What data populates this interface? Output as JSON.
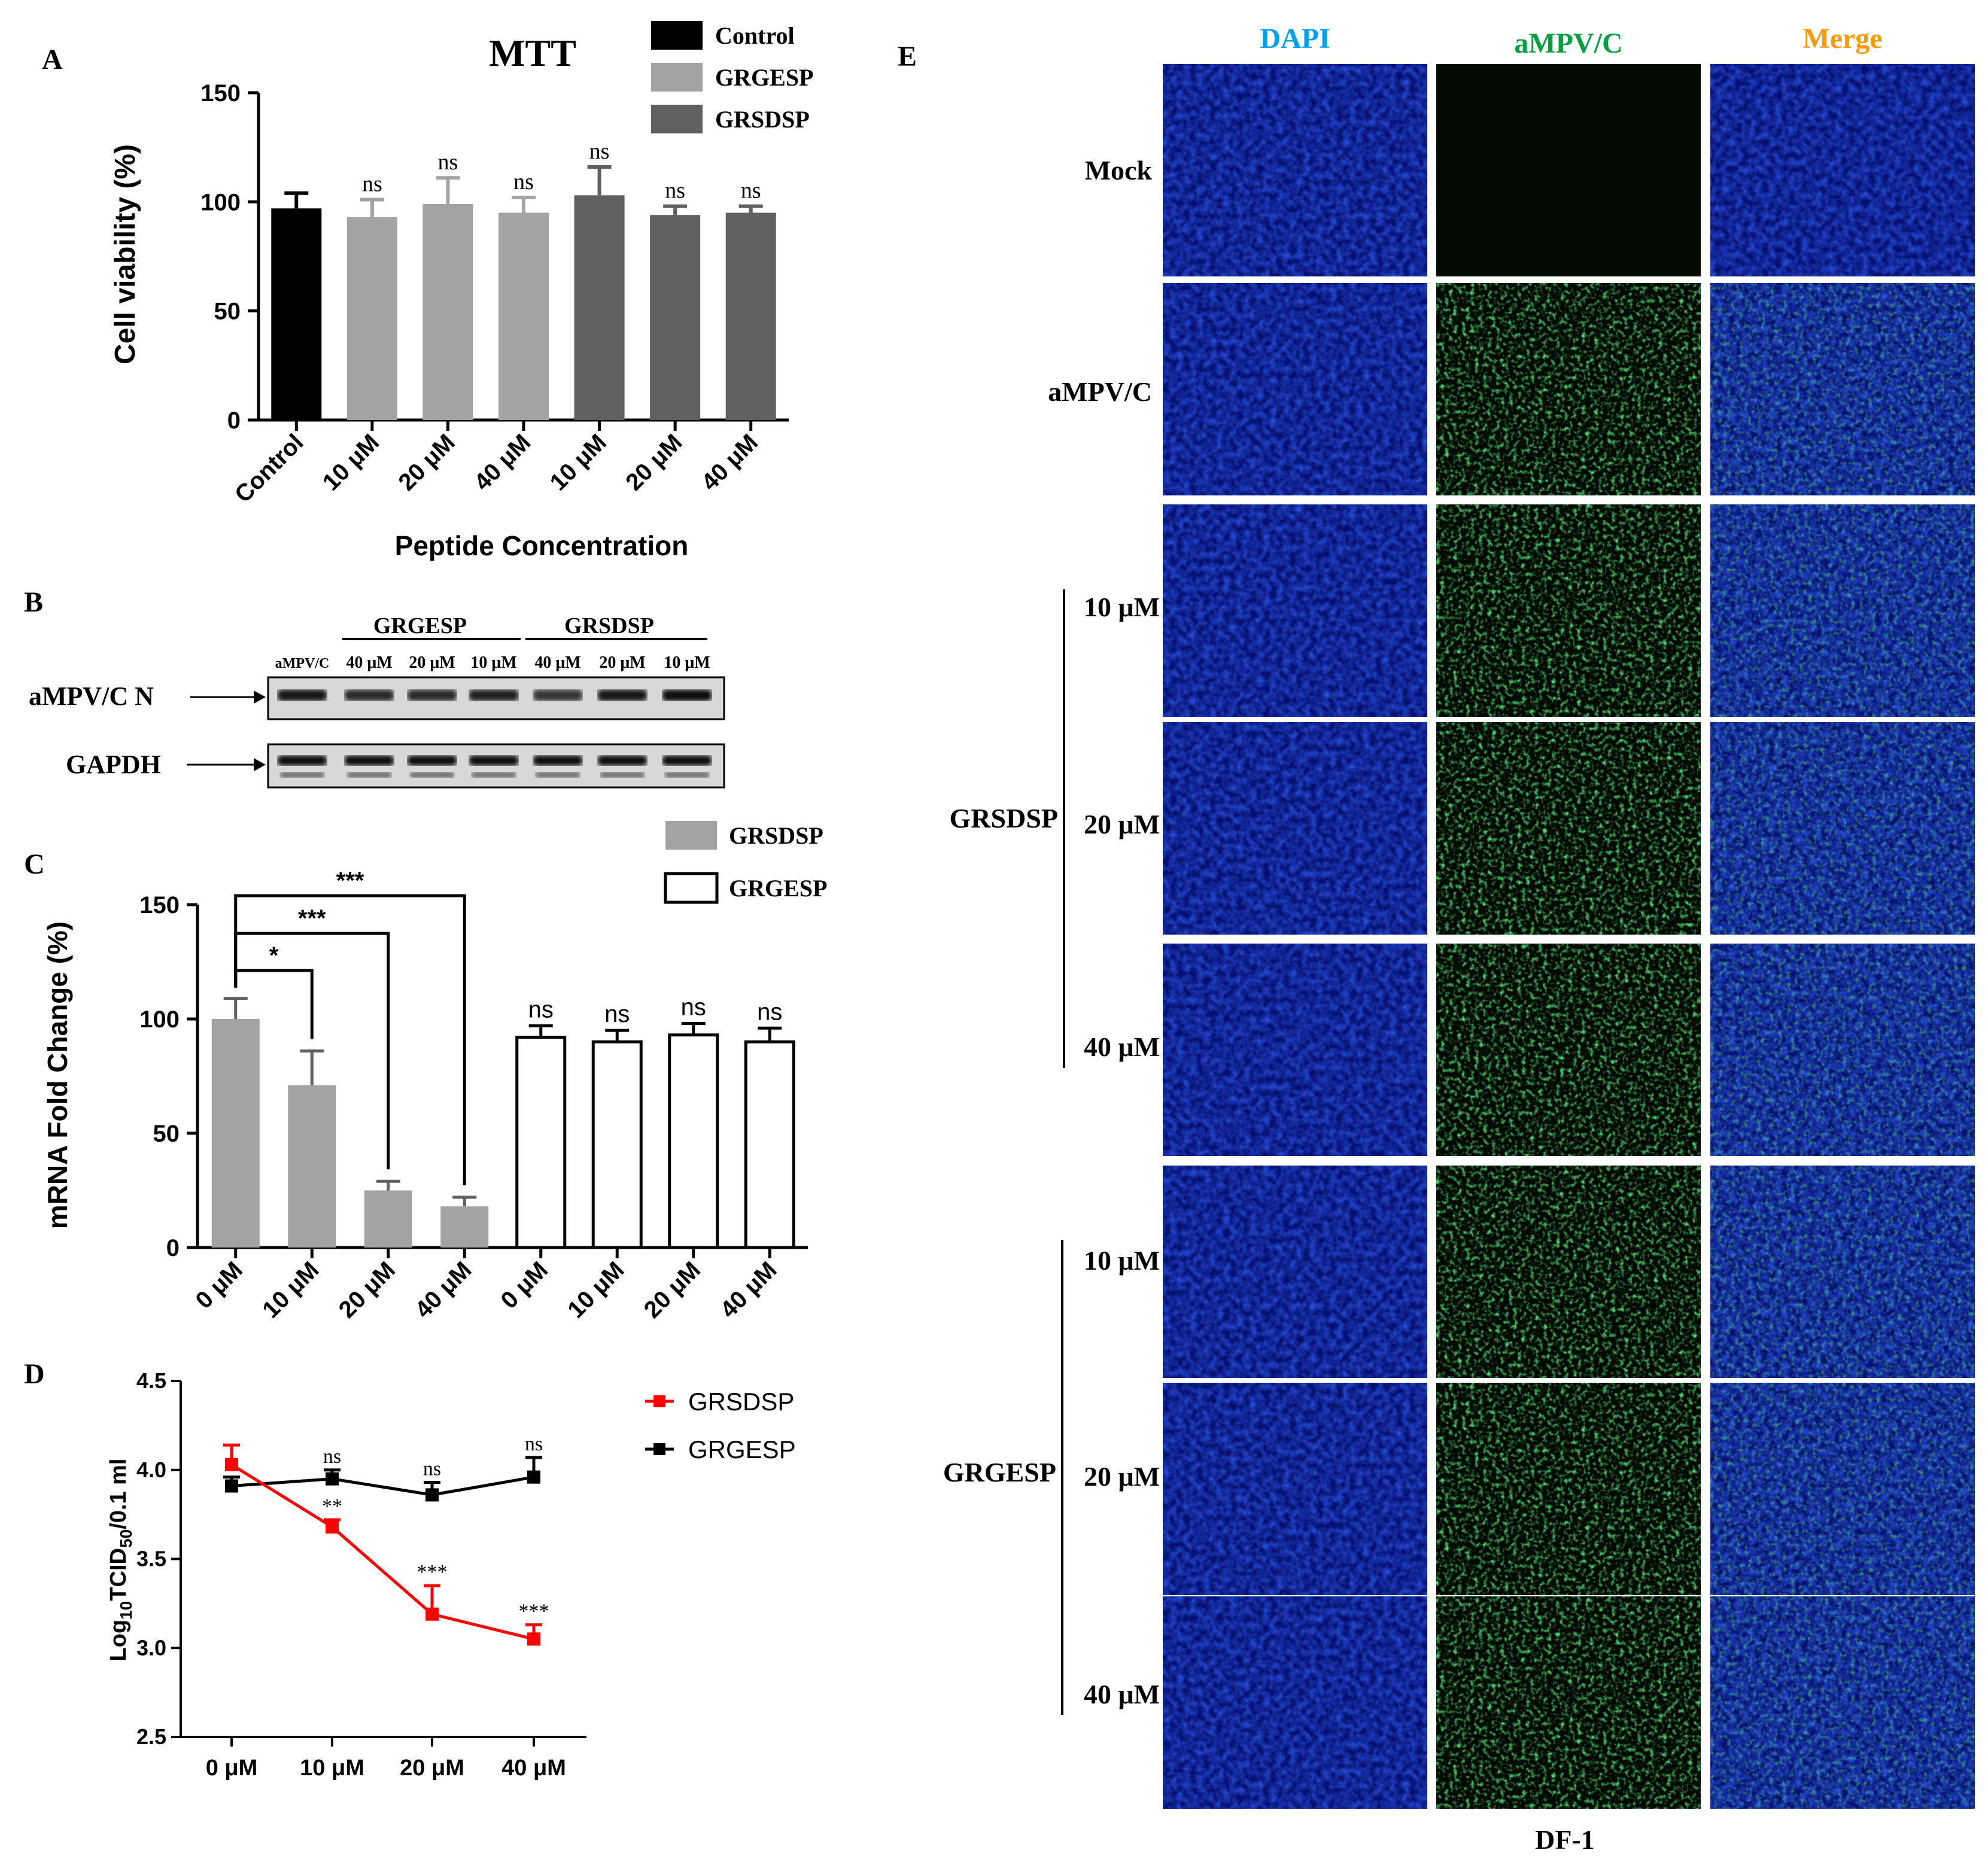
{
  "panels": {
    "a": "A",
    "b": "B",
    "c": "C",
    "d": "D",
    "e": "E"
  },
  "colors": {
    "control": "#000000",
    "grgesp_light": "#a3a3a3",
    "grsdsp_dark": "#606060",
    "red": "#ff0000",
    "dapi_title": "#00a0f0",
    "green_title": "#00a040",
    "merge_title": "#ff9a00",
    "dapi_fill": "#0a1bb4",
    "green_fill": "#2fbf3a"
  },
  "chart_data": [
    {
      "id": "A",
      "type": "bar",
      "title": "MTT",
      "xlabel": "Peptide Concentration",
      "ylabel": "Cell viability (%)",
      "ylim": [
        0,
        150
      ],
      "yticks": [
        "0",
        "50",
        "100",
        "150"
      ],
      "legend": [
        "Control",
        "GRGESP",
        "GRSDSP"
      ],
      "categories": [
        "Control",
        "10 μM",
        "20 μM",
        "40 μM",
        "10 μM",
        "20 μM",
        "40 μM"
      ],
      "groups": [
        "Control",
        "GRGESP",
        "GRGESP",
        "GRGESP",
        "GRSDSP",
        "GRSDSP",
        "GRSDSP"
      ],
      "values": [
        97,
        93,
        99,
        95,
        103,
        94,
        95
      ],
      "errors": [
        7,
        8,
        12,
        7,
        13,
        4,
        3
      ],
      "significance": [
        "",
        "ns",
        "ns",
        "ns",
        "ns",
        "ns",
        "ns"
      ]
    },
    {
      "id": "C",
      "type": "bar",
      "xlabel": "",
      "ylabel": "mRNA Fold Change (%)",
      "ylim": [
        0,
        150
      ],
      "yticks": [
        "0",
        "50",
        "100",
        "150"
      ],
      "legend": [
        "GRSDSP",
        "GRGESP"
      ],
      "categories": [
        "0 μM",
        "10 μM",
        "20 μM",
        "40 μM",
        "0 μM",
        "10 μM",
        "20 μM",
        "40 μM"
      ],
      "groups": [
        "GRSDSP",
        "GRSDSP",
        "GRSDSP",
        "GRSDSP",
        "GRGESP",
        "GRGESP",
        "GRGESP",
        "GRGESP"
      ],
      "values": [
        100,
        71,
        25,
        18,
        92,
        90,
        93,
        90
      ],
      "errors": [
        9,
        15,
        4,
        4,
        5,
        5,
        5,
        6
      ],
      "significance": [
        "",
        "",
        "",
        "",
        "ns",
        "ns",
        "ns",
        "ns"
      ],
      "brackets": [
        {
          "from": 0,
          "to": 1,
          "label": "*"
        },
        {
          "from": 0,
          "to": 2,
          "label": "***"
        },
        {
          "from": 0,
          "to": 3,
          "label": "***"
        }
      ]
    },
    {
      "id": "D",
      "type": "line",
      "xlabel": "",
      "ylabel_parts": [
        "Log",
        "10",
        "TCID",
        "50",
        "/0.1 ml"
      ],
      "ylim": [
        2.5,
        4.5
      ],
      "yticks": [
        "2.5",
        "3.0",
        "3.5",
        "4.0",
        "4.5"
      ],
      "x": [
        "0 μM",
        "10 μM",
        "20 μM",
        "40 μM"
      ],
      "series": [
        {
          "name": "GRSDSP",
          "color": "#ff0000",
          "values": [
            4.03,
            3.68,
            3.19,
            3.05
          ],
          "errors": [
            0.11,
            0.04,
            0.16,
            0.08
          ],
          "significance": [
            "",
            "**",
            "***",
            "***"
          ]
        },
        {
          "name": "GRGESP",
          "color": "#000000",
          "values": [
            3.91,
            3.95,
            3.86,
            3.96
          ],
          "errors": [
            0.05,
            0.05,
            0.07,
            0.11
          ],
          "significance": [
            "",
            "ns",
            "ns",
            "ns"
          ]
        }
      ]
    }
  ],
  "blot": {
    "group_labels": [
      "GRGESP",
      "GRSDSP"
    ],
    "lanes": [
      "aMPV/C",
      "40 μM",
      "20 μM",
      "10 μM",
      "40 μM",
      "20 μM",
      "10 μM"
    ],
    "rows": [
      "aMPV/C N",
      "GAPDH"
    ]
  },
  "fluorescence": {
    "columns": [
      "DAPI",
      "aMPV/C",
      "Merge"
    ],
    "rows": [
      "Mock",
      "aMPV/C",
      "10 μM",
      "20 μM",
      "40 μM",
      "10 μM",
      "20 μM",
      "40 μM"
    ],
    "brackets": [
      "GRSDSP",
      "GRGESP"
    ],
    "footer": "DF-1"
  }
}
